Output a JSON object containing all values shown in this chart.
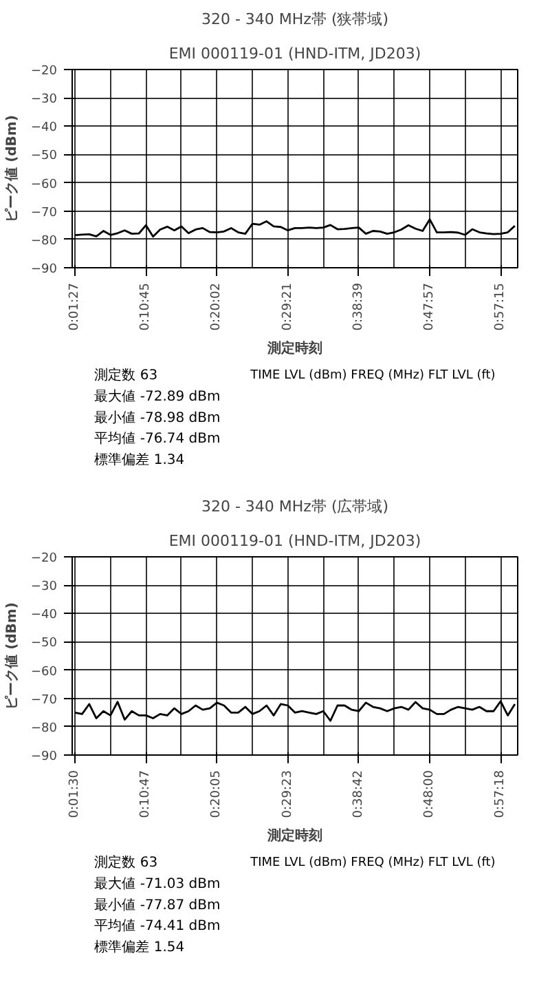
{
  "chart_data": [
    {
      "type": "line",
      "title": "320 - 340 MHz帯 (狭帯域)",
      "subtitle": "EMI 000119-01 (HND-ITM, JD203)",
      "xlabel": "測定時刻",
      "ylabel": "ピーク値 (dBm)",
      "categories": [
        "0:01:27",
        null,
        null,
        null,
        null,
        null,
        null,
        null,
        null,
        null,
        "0:10:45",
        null,
        null,
        null,
        null,
        null,
        null,
        null,
        null,
        null,
        "0:20:02",
        null,
        null,
        null,
        null,
        null,
        null,
        null,
        null,
        null,
        "0:29:21",
        null,
        null,
        null,
        null,
        null,
        null,
        null,
        null,
        null,
        "0:38:39",
        null,
        null,
        null,
        null,
        null,
        null,
        null,
        null,
        null,
        "0:47:57",
        null,
        null,
        null,
        null,
        null,
        null,
        null,
        null,
        null,
        "0:57:15",
        null,
        null
      ],
      "series": [
        {
          "color": "#000000",
          "values": [
            -78.5,
            -78.3,
            -78.2,
            -78.9,
            -77.0,
            -78.4,
            -77.8,
            -76.8,
            -78.0,
            -77.9,
            -75.0,
            -79.0,
            -76.5,
            -75.5,
            -76.8,
            -75.4,
            -77.8,
            -76.5,
            -76.0,
            -77.4,
            -77.5,
            -77.2,
            -76.0,
            -77.5,
            -78.0,
            -74.5,
            -74.8,
            -73.6,
            -75.4,
            -75.6,
            -76.8,
            -76.0,
            -76.0,
            -75.8,
            -76.0,
            -75.8,
            -74.9,
            -76.4,
            -76.3,
            -76.0,
            -75.8,
            -78.0,
            -77.0,
            -77.2,
            -78.0,
            -77.5,
            -76.5,
            -75.0,
            -76.2,
            -77.0,
            -72.9,
            -77.5,
            -77.5,
            -77.4,
            -77.6,
            -78.4,
            -76.4,
            -77.5,
            -77.9,
            -78.1,
            -78.0,
            -77.5,
            -75.2
          ]
        }
      ],
      "ylim": [
        -90,
        -20
      ],
      "yticks": [
        -20,
        -30,
        -40,
        -50,
        -60,
        -70,
        -80,
        -90
      ],
      "grid": true,
      "marker": "none",
      "line_style": "solid",
      "annotations": [
        "測定数 63",
        "最大値 -72.89 dBm",
        "最小値 -78.98 dBm",
        "平均値 -76.74 dBm",
        "標準偏差 1.34",
        "TIME LVL (dBm) FREQ (MHz) FLT LVL (ft)"
      ]
    },
    {
      "type": "line",
      "title": "320 - 340 MHz帯 (広帯域)",
      "subtitle": "EMI 000119-01 (HND-ITM, JD203)",
      "xlabel": "測定時刻",
      "ylabel": "ピーク値 (dBm)",
      "categories": [
        "0:01:30",
        null,
        null,
        null,
        null,
        null,
        null,
        null,
        null,
        null,
        "0:10:47",
        null,
        null,
        null,
        null,
        null,
        null,
        null,
        null,
        null,
        "0:20:05",
        null,
        null,
        null,
        null,
        null,
        null,
        null,
        null,
        null,
        "0:29:23",
        null,
        null,
        null,
        null,
        null,
        null,
        null,
        null,
        null,
        "0:38:42",
        null,
        null,
        null,
        null,
        null,
        null,
        null,
        null,
        null,
        "0:48:00",
        null,
        null,
        null,
        null,
        null,
        null,
        null,
        null,
        null,
        "0:57:18",
        null,
        null
      ],
      "series": [
        {
          "color": "#000000",
          "values": [
            -75.0,
            -75.5,
            -72.0,
            -77.0,
            -74.5,
            -76.0,
            -71.2,
            -77.5,
            -74.5,
            -76.0,
            -76.0,
            -77.0,
            -75.5,
            -76.0,
            -73.5,
            -75.5,
            -74.5,
            -72.5,
            -74.0,
            -73.5,
            -71.5,
            -72.5,
            -75.0,
            -75.0,
            -73.0,
            -75.5,
            -74.5,
            -72.5,
            -76.0,
            -72.0,
            -72.5,
            -75.0,
            -74.5,
            -75.0,
            -75.5,
            -74.5,
            -77.9,
            -72.5,
            -72.5,
            -74.0,
            -74.5,
            -71.5,
            -73.0,
            -73.5,
            -74.5,
            -73.5,
            -73.0,
            -74.0,
            -71.3,
            -73.5,
            -74.0,
            -75.5,
            -75.5,
            -74.0,
            -73.0,
            -73.5,
            -74.0,
            -73.0,
            -74.5,
            -74.5,
            -71.0,
            -76.0,
            -72.0
          ]
        }
      ],
      "ylim": [
        -90,
        -20
      ],
      "yticks": [
        -20,
        -30,
        -40,
        -50,
        -60,
        -70,
        -80,
        -90
      ],
      "grid": true,
      "marker": "none",
      "line_style": "solid",
      "annotations": [
        "測定数 63",
        "最大値 -71.03 dBm",
        "最小値 -77.87 dBm",
        "平均値 -74.41 dBm",
        "標準偏差 1.54",
        "TIME LVL (dBm) FREQ (MHz) FLT LVL (ft)"
      ]
    }
  ]
}
